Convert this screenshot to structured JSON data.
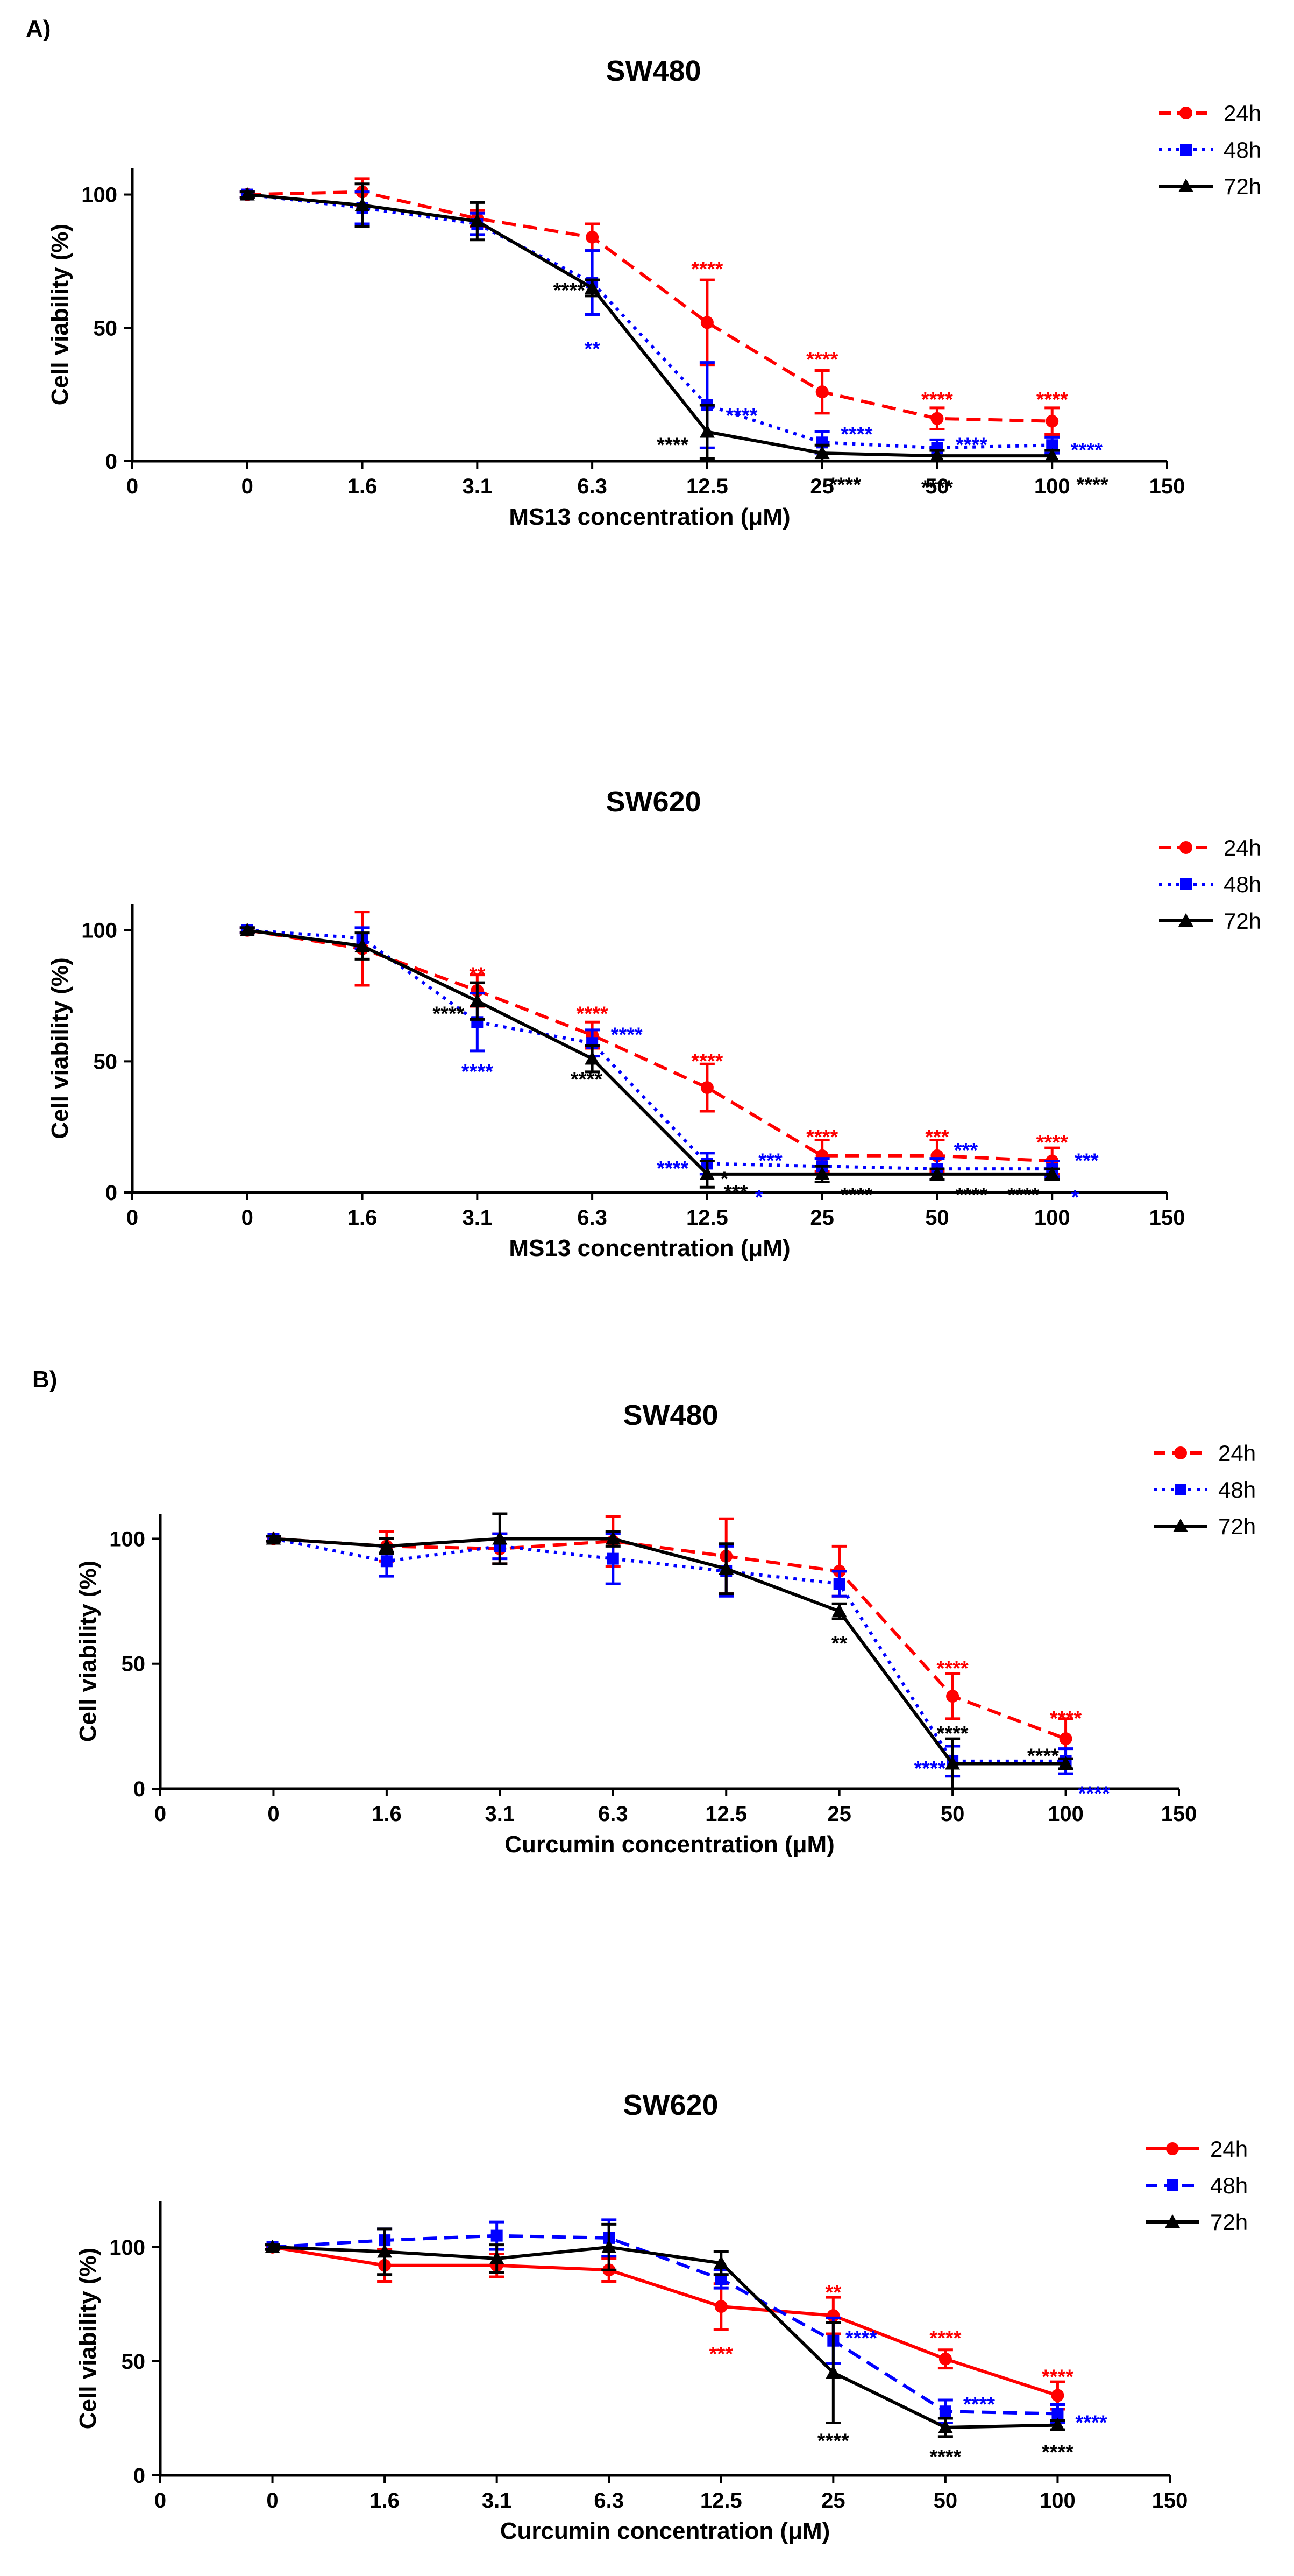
{
  "panel_labels": [
    "A)",
    "B)"
  ],
  "chart_data": [
    {
      "type": "line",
      "title": "SW480",
      "xlabel": "MS13 concentration  (μM)",
      "ylabel": "Cell viability (%)",
      "categories": [
        "0",
        "1.6",
        "3.1",
        "6.3",
        "12.5",
        "25",
        "50",
        "100"
      ],
      "x_ticks": [
        "0",
        "0",
        "1.6",
        "3.1",
        "6.3",
        "12.5",
        "25",
        "50",
        "100",
        "150"
      ],
      "yticks": [
        "0",
        "50",
        "100"
      ],
      "ylim": [
        0,
        110
      ],
      "series": [
        {
          "name": "24h",
          "color": "#ff0000",
          "dash": "dash",
          "marker": "circle",
          "values": [
            100,
            101,
            91,
            84,
            52,
            26,
            16,
            15
          ],
          "errors": [
            1,
            5,
            3,
            5,
            16,
            8,
            4,
            5
          ]
        },
        {
          "name": "48h",
          "color": "#0000ff",
          "dash": "dot",
          "marker": "square",
          "values": [
            100,
            95,
            89,
            67,
            21,
            7,
            5,
            6
          ],
          "errors": [
            1,
            6,
            4,
            12,
            16,
            4,
            3,
            3
          ]
        },
        {
          "name": "72h",
          "color": "#000000",
          "dash": "solid",
          "marker": "triangle",
          "values": [
            100,
            96,
            90,
            65,
            11,
            3,
            2,
            2
          ],
          "errors": [
            1,
            8,
            7,
            3,
            10,
            3,
            2,
            2
          ]
        }
      ],
      "annotations": [
        {
          "text": "****",
          "color": "#ff0000",
          "at": 4,
          "value": 72
        },
        {
          "text": "****",
          "color": "#ff0000",
          "at": 5,
          "value": 38
        },
        {
          "text": "****",
          "color": "#ff0000",
          "at": 6,
          "value": 23
        },
        {
          "text": "****",
          "color": "#ff0000",
          "at": 7,
          "value": 23
        },
        {
          "text": "****",
          "color": "#000000",
          "at": 2.8,
          "value": 64
        },
        {
          "text": "**",
          "color": "#0000ff",
          "at": 3,
          "value": 42
        },
        {
          "text": "****",
          "color": "#0000ff",
          "at": 4.3,
          "value": 17
        },
        {
          "text": "****",
          "color": "#0000ff",
          "at": 5.3,
          "value": 10
        },
        {
          "text": "****",
          "color": "#0000ff",
          "at": 6.3,
          "value": 6
        },
        {
          "text": "****",
          "color": "#0000ff",
          "at": 7.3,
          "value": 4
        },
        {
          "text": "****",
          "color": "#000000",
          "at": 3.7,
          "value": 6
        },
        {
          "text": "****",
          "color": "#000000",
          "at": 5.2,
          "value": -9
        },
        {
          "text": "****",
          "color": "#000000",
          "at": 6,
          "value": -10
        },
        {
          "text": "****",
          "color": "#000000",
          "at": 7.35,
          "value": -9
        }
      ]
    },
    {
      "type": "line",
      "title": "SW620",
      "xlabel": "MS13 concentration (μM)",
      "ylabel": "Cell viability (%)",
      "categories": [
        "0",
        "1.6",
        "3.1",
        "6.3",
        "12.5",
        "25",
        "50",
        "100"
      ],
      "x_ticks": [
        "0",
        "0",
        "1.6",
        "3.1",
        "6.3",
        "12.5",
        "25",
        "50",
        "100",
        "150"
      ],
      "yticks": [
        "0",
        "50",
        "100"
      ],
      "ylim": [
        0,
        110
      ],
      "series": [
        {
          "name": "24h",
          "color": "#ff0000",
          "dash": "dash",
          "marker": "circle",
          "values": [
            100,
            93,
            77,
            60,
            40,
            14,
            14,
            12
          ],
          "errors": [
            1,
            14,
            6,
            5,
            9,
            6,
            6,
            5
          ]
        },
        {
          "name": "48h",
          "color": "#0000ff",
          "dash": "dot",
          "marker": "square",
          "values": [
            100,
            97,
            65,
            57,
            11,
            10,
            9,
            9
          ],
          "errors": [
            1,
            4,
            11,
            5,
            4,
            3,
            4,
            3
          ]
        },
        {
          "name": "72h",
          "color": "#000000",
          "dash": "solid",
          "marker": "triangle",
          "values": [
            100,
            94,
            73,
            51,
            7,
            7,
            7,
            7
          ],
          "errors": [
            1,
            5,
            7,
            5,
            5,
            3,
            2,
            2
          ]
        }
      ],
      "annotations": [
        {
          "text": "**",
          "color": "#ff0000",
          "at": 2,
          "value": 83
        },
        {
          "text": "****",
          "color": "#ff0000",
          "at": 3,
          "value": 68
        },
        {
          "text": "****",
          "color": "#ff0000",
          "at": 4,
          "value": 50
        },
        {
          "text": "****",
          "color": "#ff0000",
          "at": 5,
          "value": 21
        },
        {
          "text": "***",
          "color": "#ff0000",
          "at": 6,
          "value": 21
        },
        {
          "text": "****",
          "color": "#ff0000",
          "at": 7,
          "value": 19
        },
        {
          "text": "****",
          "color": "#000000",
          "at": 1.75,
          "value": 68
        },
        {
          "text": "****",
          "color": "#0000ff",
          "at": 2,
          "value": 46
        },
        {
          "text": "****",
          "color": "#0000ff",
          "at": 3.3,
          "value": 60
        },
        {
          "text": "****",
          "color": "#000000",
          "at": 2.95,
          "value": 43
        },
        {
          "text": "****",
          "color": "#0000ff",
          "at": 3.7,
          "value": 9
        },
        {
          "text": "***",
          "color": "#0000ff",
          "at": 4.55,
          "value": 12
        },
        {
          "text": "***",
          "color": "#0000ff",
          "at": 6.25,
          "value": 16
        },
        {
          "text": "***",
          "color": "#0000ff",
          "at": 7.3,
          "value": 12
        },
        {
          "text": "*",
          "color": "#0000ff",
          "at": 4.45,
          "value": -2
        },
        {
          "text": "*",
          "color": "#0000ff",
          "at": 7.2,
          "value": -2
        },
        {
          "text": "***",
          "color": "#000000",
          "at": 4.25,
          "value": 0
        },
        {
          "text": "*",
          "color": "#000000",
          "at": 4.15,
          "value": 5
        },
        {
          "text": "****",
          "color": "#000000",
          "at": 5.3,
          "value": -1
        },
        {
          "text": "****",
          "color": "#000000",
          "at": 6.3,
          "value": -1
        },
        {
          "text": "****",
          "color": "#000000",
          "at": 6.75,
          "value": -1
        }
      ]
    },
    {
      "type": "line",
      "title": "SW480",
      "xlabel": "Curcumin concentration (μM)",
      "ylabel": "Cell viability (%)",
      "categories": [
        "0",
        "1.6",
        "3.1",
        "6.3",
        "12.5",
        "25",
        "50",
        "100"
      ],
      "x_ticks": [
        "0",
        "0",
        "1.6",
        "3.1",
        "6.3",
        "12.5",
        "25",
        "50",
        "100",
        "150"
      ],
      "yticks": [
        "0",
        "50",
        "100"
      ],
      "ylim": [
        0,
        110
      ],
      "series": [
        {
          "name": "24h",
          "color": "#ff0000",
          "dash": "dash",
          "marker": "circle",
          "values": [
            100,
            97,
            96,
            99,
            93,
            87,
            37,
            20
          ],
          "errors": [
            1,
            6,
            6,
            10,
            15,
            10,
            9,
            8
          ]
        },
        {
          "name": "48h",
          "color": "#0000ff",
          "dash": "dot",
          "marker": "square",
          "values": [
            100,
            91,
            97,
            92,
            87,
            82,
            11,
            11
          ],
          "errors": [
            1,
            6,
            5,
            10,
            10,
            5,
            6,
            5
          ]
        },
        {
          "name": "72h",
          "color": "#000000",
          "dash": "solid",
          "marker": "triangle",
          "values": [
            100,
            97,
            100,
            100,
            88,
            71,
            10,
            10
          ],
          "errors": [
            1,
            3,
            10,
            3,
            10,
            3,
            10,
            2
          ]
        }
      ],
      "annotations": [
        {
          "text": "**",
          "color": "#000000",
          "at": 5,
          "value": 58
        },
        {
          "text": "****",
          "color": "#ff0000",
          "at": 6,
          "value": 48
        },
        {
          "text": "****",
          "color": "#000000",
          "at": 6,
          "value": 22
        },
        {
          "text": "****",
          "color": "#0000ff",
          "at": 5.8,
          "value": 8
        },
        {
          "text": "****",
          "color": "#ff0000",
          "at": 7,
          "value": 28
        },
        {
          "text": "****",
          "color": "#000000",
          "at": 6.8,
          "value": 13
        },
        {
          "text": "****",
          "color": "#0000ff",
          "at": 7.25,
          "value": -2
        }
      ]
    },
    {
      "type": "line",
      "title": "SW620",
      "xlabel": "Curcumin concentration (μM)",
      "ylabel": "Cell viability (%)",
      "categories": [
        "0",
        "1.6",
        "3.1",
        "6.3",
        "12.5",
        "25",
        "50",
        "100"
      ],
      "x_ticks": [
        "0",
        "0",
        "1.6",
        "3.1",
        "6.3",
        "12.5",
        "25",
        "50",
        "100",
        "150"
      ],
      "yticks": [
        "0",
        "50",
        "100"
      ],
      "ylim": [
        0,
        120
      ],
      "series": [
        {
          "name": "24h",
          "color": "#ff0000",
          "dash": "solid",
          "marker": "circle",
          "values": [
            100,
            92,
            92,
            90,
            74,
            70,
            51,
            35
          ],
          "errors": [
            1,
            7,
            5,
            5,
            10,
            8,
            4,
            6
          ]
        },
        {
          "name": "48h",
          "color": "#0000ff",
          "dash": "dash",
          "marker": "square",
          "values": [
            100,
            103,
            105,
            104,
            86,
            59,
            28,
            27
          ],
          "errors": [
            1,
            5,
            6,
            8,
            4,
            10,
            5,
            4
          ]
        },
        {
          "name": "72h",
          "color": "#000000",
          "dash": "solid",
          "marker": "triangle",
          "values": [
            100,
            98,
            95,
            100,
            93,
            45,
            21,
            22
          ],
          "errors": [
            1,
            10,
            6,
            10,
            5,
            22,
            4,
            2
          ]
        }
      ],
      "annotations": [
        {
          "text": "***",
          "color": "#ff0000",
          "at": 4,
          "value": 53
        },
        {
          "text": "**",
          "color": "#ff0000",
          "at": 5,
          "value": 80
        },
        {
          "text": "****",
          "color": "#0000ff",
          "at": 5.25,
          "value": 60
        },
        {
          "text": "****",
          "color": "#000000",
          "at": 5,
          "value": 15
        },
        {
          "text": "****",
          "color": "#ff0000",
          "at": 6,
          "value": 60
        },
        {
          "text": "****",
          "color": "#0000ff",
          "at": 6.3,
          "value": 31
        },
        {
          "text": "****",
          "color": "#000000",
          "at": 6,
          "value": 8
        },
        {
          "text": "****",
          "color": "#ff0000",
          "at": 7,
          "value": 43
        },
        {
          "text": "****",
          "color": "#0000ff",
          "at": 7.3,
          "value": 23
        },
        {
          "text": "****",
          "color": "#000000",
          "at": 7,
          "value": 10
        }
      ]
    }
  ]
}
